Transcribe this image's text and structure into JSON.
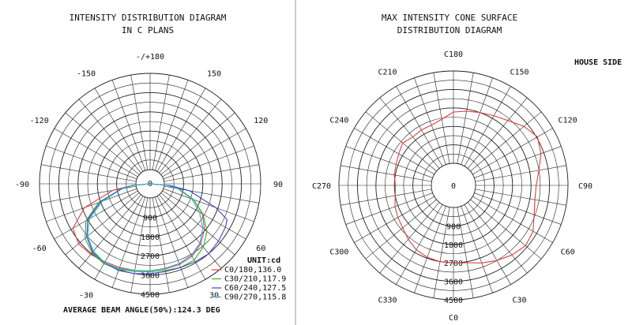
{
  "left_diagram": {
    "title_line1": "INTENSITY DISTRIBUTION DIAGRAM",
    "title_line2": "IN C PLANS",
    "angle_labels": [
      {
        "deg": 180,
        "text": "-/+180"
      },
      {
        "deg": 150,
        "text": "150"
      },
      {
        "deg": -150,
        "text": "-150"
      },
      {
        "deg": 120,
        "text": "120"
      },
      {
        "deg": -120,
        "text": "-120"
      },
      {
        "deg": 90,
        "text": "90"
      },
      {
        "deg": -90,
        "text": "-90"
      },
      {
        "deg": 60,
        "text": "60"
      },
      {
        "deg": -60,
        "text": "-60"
      },
      {
        "deg": 30,
        "text": "30"
      },
      {
        "deg": -30,
        "text": "-30"
      },
      {
        "deg": 0,
        "text": "0"
      }
    ],
    "radial_labels": [
      "0",
      "900",
      "1800",
      "2700",
      "3600",
      "4500"
    ],
    "unit_label": "UNIT:cd",
    "legend": [
      {
        "name": "C0/180,136.0",
        "color": "#e04040"
      },
      {
        "name": "C30/210,117.9",
        "color": "#30b030"
      },
      {
        "name": "C60/240,127.5",
        "color": "#4040c8"
      },
      {
        "name": "C90/270,115.8",
        "color": "#30b0d0"
      }
    ],
    "footer": "AVERAGE BEAM ANGLE(50%):124.3 DEG"
  },
  "right_diagram": {
    "title_line1": "MAX INTENSITY CONE SURFACE",
    "title_line2": "DISTRIBUTION DIAGRAM",
    "house_side": "HOUSE SIDE",
    "angle_labels": [
      "C180",
      "C150",
      "C120",
      "C90",
      "C60",
      "C30",
      "C0",
      "C330",
      "C300",
      "C270",
      "C240",
      "C210"
    ],
    "radial_labels": [
      "0",
      "900",
      "1800",
      "2700",
      "3600",
      "4500"
    ]
  },
  "colors": {
    "grid": "#222222",
    "divider": "#999999",
    "cone_curve": "#e04040"
  },
  "chart_data": [
    {
      "type": "polar",
      "title": "INTENSITY DISTRIBUTION DIAGRAM IN C PLANS",
      "unit": "cd",
      "r_range": [
        0,
        4500
      ],
      "r_ticks": [
        0,
        900,
        1800,
        2700,
        3600,
        4500
      ],
      "angle_ticks_deg": [
        -180,
        -150,
        -120,
        -90,
        -60,
        -30,
        0,
        30,
        60,
        90,
        120,
        150,
        180
      ],
      "series": [
        {
          "name": "C0/180,136.0",
          "color": "#e04040",
          "points": [
            [
              -85,
              150
            ],
            [
              -80,
              1100
            ],
            [
              -70,
              2600
            ],
            [
              -60,
              3500
            ],
            [
              -50,
              3700
            ],
            [
              -40,
              3650
            ],
            [
              -30,
              3550
            ],
            [
              -20,
              3500
            ],
            [
              -10,
              3450
            ],
            [
              0,
              3400
            ],
            [
              10,
              3380
            ],
            [
              20,
              3350
            ],
            [
              30,
              3250
            ],
            [
              40,
              3000
            ],
            [
              50,
              2650
            ],
            [
              60,
              2150
            ],
            [
              70,
              1500
            ],
            [
              80,
              700
            ],
            [
              85,
              100
            ]
          ]
        },
        {
          "name": "C30/210,117.9",
          "color": "#30b030",
          "points": [
            [
              -85,
              100
            ],
            [
              -80,
              700
            ],
            [
              -70,
              1900
            ],
            [
              -60,
              2800
            ],
            [
              -50,
              3300
            ],
            [
              -40,
              3550
            ],
            [
              -30,
              3650
            ],
            [
              -20,
              3600
            ],
            [
              -10,
              3500
            ],
            [
              0,
              3450
            ],
            [
              10,
              3450
            ],
            [
              20,
              3500
            ],
            [
              30,
              3450
            ],
            [
              40,
              3200
            ],
            [
              50,
              2800
            ],
            [
              60,
              2200
            ],
            [
              70,
              1500
            ],
            [
              80,
              700
            ],
            [
              85,
              100
            ]
          ]
        },
        {
          "name": "C60/240,127.5",
          "color": "#4040c8",
          "points": [
            [
              -85,
              100
            ],
            [
              -80,
              700
            ],
            [
              -70,
              1800
            ],
            [
              -60,
              2700
            ],
            [
              -50,
              3200
            ],
            [
              -40,
              3500
            ],
            [
              -30,
              3600
            ],
            [
              -20,
              3650
            ],
            [
              -10,
              3600
            ],
            [
              0,
              3550
            ],
            [
              10,
              3500
            ],
            [
              20,
              3500
            ],
            [
              30,
              3550
            ],
            [
              40,
              3600
            ],
            [
              50,
              3500
            ],
            [
              60,
              3400
            ],
            [
              65,
              3300
            ],
            [
              70,
              2600
            ],
            [
              80,
              1200
            ],
            [
              85,
              300
            ]
          ]
        },
        {
          "name": "C90/270,115.8",
          "color": "#30b0d0",
          "points": [
            [
              -85,
              100
            ],
            [
              -80,
              650
            ],
            [
              -70,
              1700
            ],
            [
              -60,
              2600
            ],
            [
              -50,
              3150
            ],
            [
              -40,
              3450
            ],
            [
              -30,
              3600
            ],
            [
              -20,
              3550
            ],
            [
              -10,
              3450
            ],
            [
              0,
              3400
            ],
            [
              10,
              3350
            ],
            [
              20,
              3300
            ],
            [
              30,
              3200
            ],
            [
              40,
              2950
            ],
            [
              50,
              2550
            ],
            [
              60,
              2000
            ],
            [
              70,
              1400
            ],
            [
              80,
              650
            ],
            [
              85,
              100
            ]
          ]
        }
      ]
    },
    {
      "type": "polar",
      "title": "MAX INTENSITY CONE SURFACE DISTRIBUTION DIAGRAM",
      "r_range": [
        0,
        4500
      ],
      "r_ticks": [
        0,
        900,
        1800,
        2700,
        3600,
        4500
      ],
      "angle_ticks": [
        "C0",
        "C30",
        "C60",
        "C90",
        "C120",
        "C150",
        "C180",
        "C210",
        "C240",
        "C270",
        "C300",
        "C330"
      ],
      "series": [
        {
          "name": "",
          "color": "#e04040",
          "points": [
            [
              0,
              2700
            ],
            [
              10,
              2750
            ],
            [
              20,
              2950
            ],
            [
              30,
              3150
            ],
            [
              40,
              3350
            ],
            [
              50,
              3500
            ],
            [
              60,
              3400
            ],
            [
              70,
              3100
            ],
            [
              80,
              2950
            ],
            [
              90,
              2950
            ],
            [
              100,
              3150
            ],
            [
              110,
              3450
            ],
            [
              120,
              3650
            ],
            [
              130,
              3400
            ],
            [
              140,
              3050
            ],
            [
              150,
              2850
            ],
            [
              160,
              2700
            ],
            [
              170,
              2600
            ],
            [
              180,
              2500
            ],
            [
              190,
              2200
            ],
            [
              200,
              2050
            ],
            [
              210,
              2050
            ],
            [
              220,
              2000
            ],
            [
              230,
              2150
            ],
            [
              240,
              2000
            ],
            [
              250,
              1900
            ],
            [
              260,
              1850
            ],
            [
              270,
              1750
            ],
            [
              280,
              1800
            ],
            [
              290,
              1950
            ],
            [
              300,
              2050
            ],
            [
              310,
              2150
            ],
            [
              320,
              2350
            ],
            [
              330,
              2550
            ],
            [
              340,
              2650
            ],
            [
              350,
              2700
            ]
          ]
        }
      ]
    }
  ]
}
